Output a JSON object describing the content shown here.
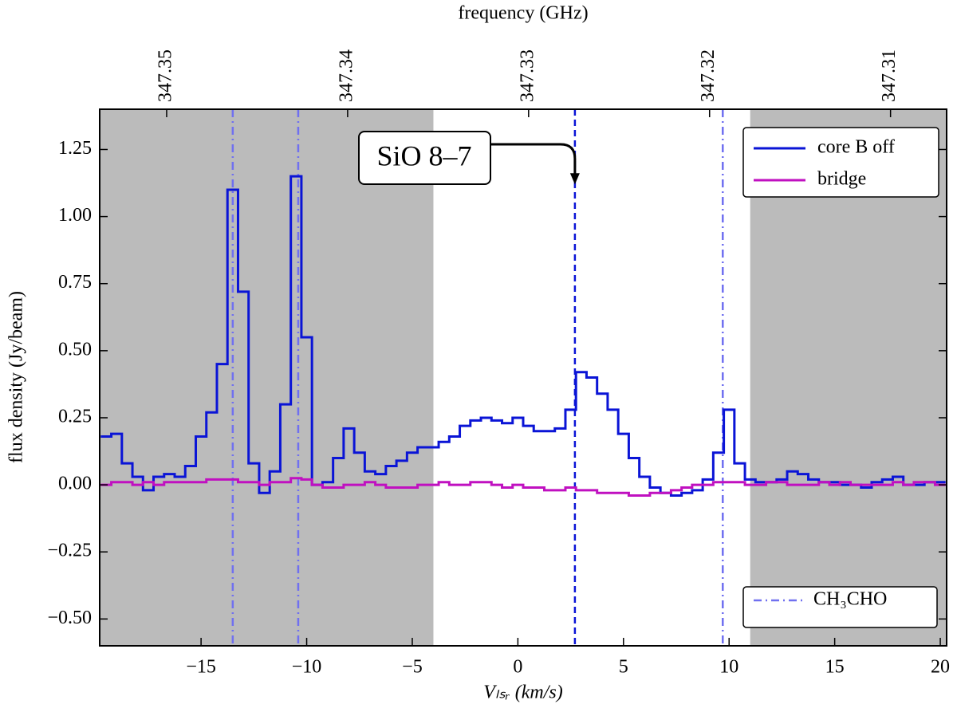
{
  "chart_data": {
    "type": "step",
    "xlabel": "Vₗₛᵣ (km/s)",
    "ylabel": "flux density (Jy/beam)",
    "x2label": "frequency (GHz)",
    "xlim": [
      -19.8,
      20.3
    ],
    "ylim": [
      -0.6,
      1.4
    ],
    "x2lim": [
      347.3537,
      347.3069
    ],
    "xticks": [
      {
        "value": -15,
        "label": "−15"
      },
      {
        "value": -10,
        "label": "−10"
      },
      {
        "value": -5,
        "label": "−5"
      },
      0,
      5,
      10,
      15,
      20
    ],
    "yticks": [
      {
        "value": -0.5,
        "label": "−0.50"
      },
      {
        "value": -0.25,
        "label": "−0.25"
      },
      {
        "value": 0,
        "label": "0.00"
      },
      {
        "value": 0.25,
        "label": "0.25"
      },
      {
        "value": 0.5,
        "label": "0.50"
      },
      {
        "value": 0.75,
        "label": "0.75"
      },
      {
        "value": 1.0,
        "label": "1.00"
      },
      {
        "value": 1.25,
        "label": "1.25"
      }
    ],
    "x2ticks": [
      347.35,
      347.34,
      347.33,
      347.32,
      347.31
    ],
    "shaded_regions": [
      [
        -20,
        -4
      ],
      [
        11,
        21
      ]
    ],
    "shade_color": "#bbbbbb",
    "x": [
      -19.5,
      -19.0,
      -18.5,
      -18.0,
      -17.5,
      -17.0,
      -16.5,
      -16.0,
      -15.5,
      -15.0,
      -14.5,
      -14.0,
      -13.5,
      -13.0,
      -12.5,
      -12.0,
      -11.5,
      -11.0,
      -10.5,
      -10.0,
      -9.5,
      -9.0,
      -8.5,
      -8.0,
      -7.5,
      -7.0,
      -6.5,
      -6.0,
      -5.5,
      -5.0,
      -4.5,
      -4.0,
      -3.5,
      -3.0,
      -2.5,
      -2.0,
      -1.5,
      -1.0,
      -0.5,
      0.0,
      0.5,
      1.0,
      1.5,
      2.0,
      2.5,
      3.0,
      3.5,
      4.0,
      4.5,
      5.0,
      5.5,
      6.0,
      6.5,
      7.0,
      7.5,
      8.0,
      8.5,
      9.0,
      9.5,
      10.0,
      10.5,
      11.0,
      11.5,
      12.0,
      12.5,
      13.0,
      13.5,
      14.0,
      14.5,
      15.0,
      15.5,
      16.0,
      16.5,
      17.0,
      17.5,
      18.0,
      18.5,
      19.0,
      19.5,
      20.0
    ],
    "series": [
      {
        "name": "core B off",
        "color": "#0a14d6",
        "values": [
          0.18,
          0.19,
          0.08,
          0.03,
          -0.02,
          0.03,
          0.04,
          0.03,
          0.07,
          0.18,
          0.27,
          0.45,
          1.1,
          0.72,
          0.08,
          -0.03,
          0.05,
          0.3,
          1.15,
          0.55,
          0.0,
          0.01,
          0.1,
          0.21,
          0.12,
          0.05,
          0.04,
          0.07,
          0.09,
          0.12,
          0.14,
          0.14,
          0.16,
          0.18,
          0.22,
          0.24,
          0.25,
          0.24,
          0.23,
          0.25,
          0.22,
          0.2,
          0.2,
          0.21,
          0.28,
          0.42,
          0.4,
          0.34,
          0.28,
          0.19,
          0.1,
          0.03,
          -0.01,
          -0.03,
          -0.04,
          -0.03,
          -0.02,
          0.02,
          0.12,
          0.28,
          0.08,
          0.02,
          0.01,
          0.01,
          0.02,
          0.05,
          0.04,
          0.02,
          0.01,
          0.01,
          0.0,
          0.0,
          -0.01,
          0.01,
          0.02,
          0.03,
          0.0,
          0.0,
          0.01,
          0.01
        ]
      },
      {
        "name": "bridge",
        "color": "#c010c0",
        "values": [
          0.0,
          0.01,
          0.01,
          0.0,
          0.01,
          0.0,
          0.01,
          0.01,
          0.01,
          0.01,
          0.02,
          0.02,
          0.02,
          0.01,
          0.01,
          0.0,
          0.01,
          0.01,
          0.025,
          0.02,
          0.0,
          -0.01,
          -0.01,
          0.0,
          0.0,
          0.01,
          0.0,
          -0.01,
          -0.01,
          -0.01,
          0.0,
          0.0,
          0.01,
          0.0,
          0.0,
          0.01,
          0.01,
          0.0,
          -0.01,
          0.0,
          -0.01,
          -0.01,
          -0.02,
          -0.02,
          -0.01,
          -0.02,
          -0.02,
          -0.03,
          -0.03,
          -0.03,
          -0.04,
          -0.04,
          -0.03,
          -0.03,
          -0.02,
          -0.01,
          0.0,
          0.0,
          0.01,
          0.01,
          0.01,
          0.0,
          0.0,
          0.01,
          0.01,
          0.0,
          0.0,
          0.0,
          0.01,
          0.0,
          0.01,
          0.0,
          0.0,
          0.0,
          0.0,
          0.01,
          0.0,
          0.01,
          0.01,
          0.0
        ]
      }
    ],
    "vlines": [
      {
        "name": "CH₃CHO",
        "color": "#7070f0",
        "style": "dashdot",
        "x": [
          -13.5,
          -10.4,
          9.7
        ]
      },
      {
        "color": "#0a14d6",
        "style": "dashed",
        "x": [
          2.7
        ]
      }
    ],
    "annotation": {
      "text": "SiO 8–7",
      "x": 2.7,
      "y": 1.12
    },
    "legend": "upper right"
  }
}
